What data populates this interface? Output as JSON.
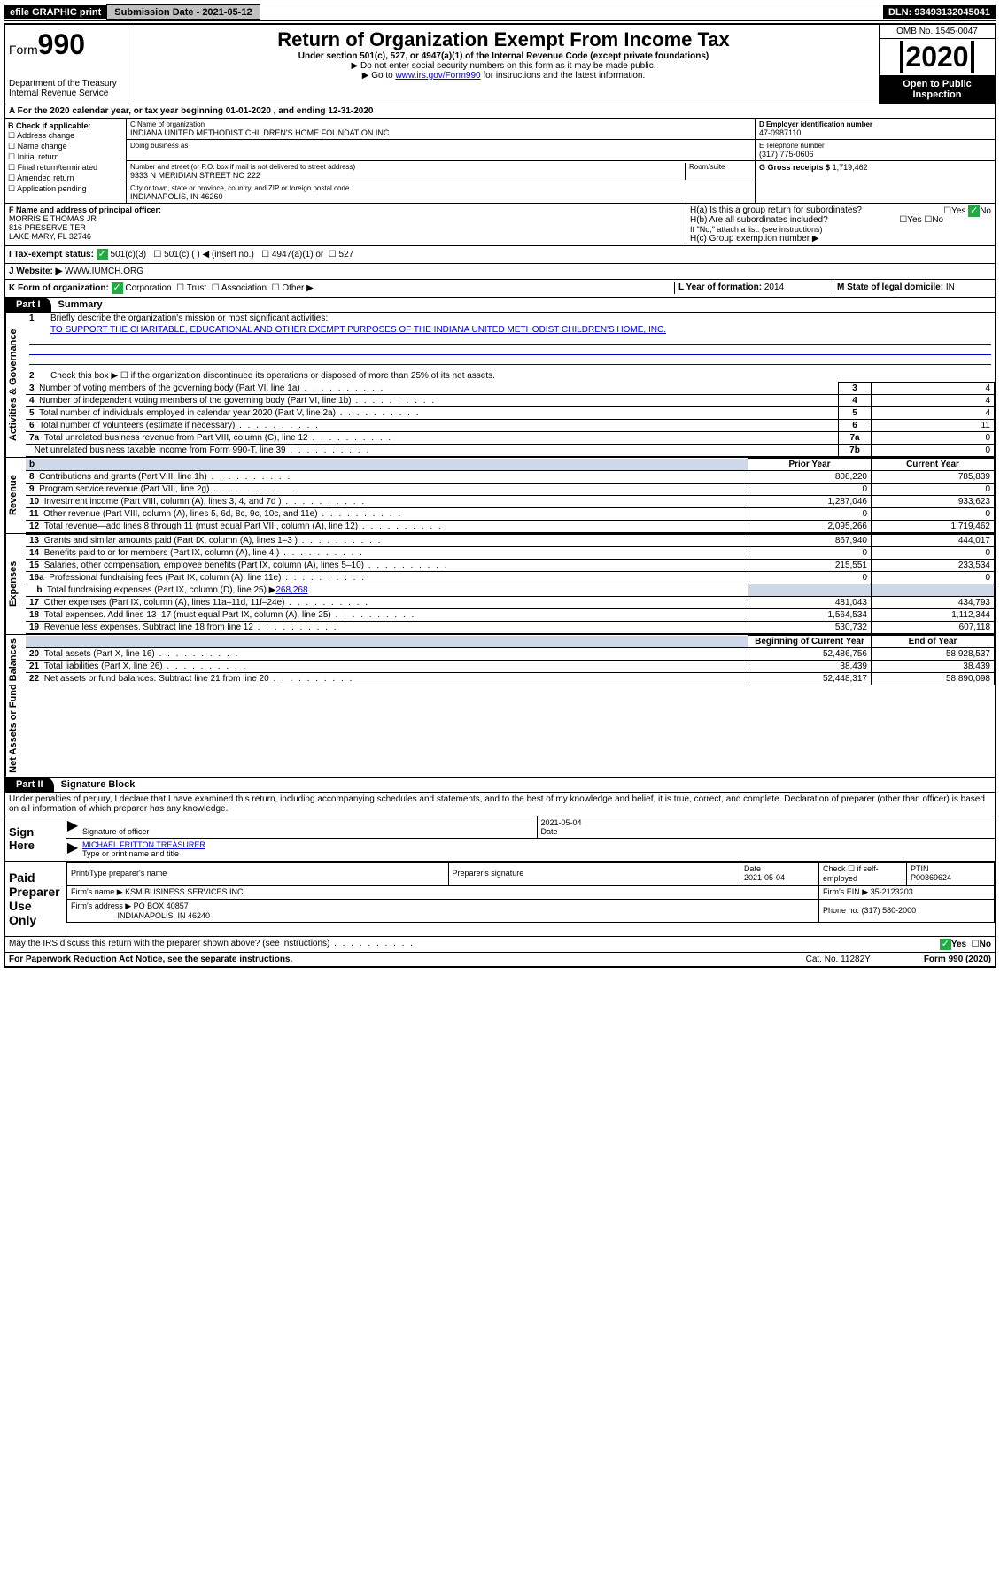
{
  "topbar": {
    "efile": "efile GRAPHIC print",
    "submission": "Submission Date - 2021-05-12",
    "dln": "DLN: 93493132045041"
  },
  "header": {
    "form_prefix": "Form",
    "form_number": "990",
    "title": "Return of Organization Exempt From Income Tax",
    "subtitle": "Under section 501(c), 527, or 4947(a)(1) of the Internal Revenue Code (except private foundations)",
    "note1": "▶ Do not enter social security numbers on this form as it may be made public.",
    "note2_pre": "▶ Go to ",
    "note2_link": "www.irs.gov/Form990",
    "note2_post": " for instructions and the latest information.",
    "dept": "Department of the Treasury\nInternal Revenue Service",
    "omb": "OMB No. 1545-0047",
    "year": "2020",
    "open": "Open to Public Inspection"
  },
  "row_a": "A For the 2020 calendar year, or tax year beginning 01-01-2020    , and ending 12-31-2020",
  "box_b": {
    "label": "B Check if applicable:",
    "opts": [
      "Address change",
      "Name change",
      "Initial return",
      "Final return/terminated",
      "Amended return",
      "Application pending"
    ]
  },
  "box_c": {
    "name_label": "C Name of organization",
    "name": "INDIANA UNITED METHODIST CHILDREN'S HOME FOUNDATION INC",
    "dba_label": "Doing business as",
    "addr_label": "Number and street (or P.O. box if mail is not delivered to street address)",
    "room_label": "Room/suite",
    "addr": "9333 N MERIDIAN STREET NO 222",
    "city_label": "City or town, state or province, country, and ZIP or foreign postal code",
    "city": "INDIANAPOLIS, IN  46260"
  },
  "box_d": {
    "label": "D Employer identification number",
    "val": "47-0987110"
  },
  "box_e": {
    "label": "E Telephone number",
    "val": "(317) 775-0606"
  },
  "box_g": {
    "label": "G Gross receipts $",
    "val": "1,719,462"
  },
  "box_f": {
    "label": "F  Name and address of principal officer:",
    "l1": "MORRIS E THOMAS JR",
    "l2": "816 PRESERVE TER",
    "l3": "LAKE MARY, FL  32746"
  },
  "box_h": {
    "a": "H(a)  Is this a group return for subordinates?",
    "b": "H(b)  Are all subordinates included?",
    "b_note": "If \"No,\" attach a list. (see instructions)",
    "c": "H(c)  Group exemption number ▶",
    "yes": "Yes",
    "no": "No"
  },
  "row_i": {
    "label": "I   Tax-exempt status:",
    "o1": "501(c)(3)",
    "o2": "501(c) (    ) ◀ (insert no.)",
    "o3": "4947(a)(1) or",
    "o4": "527"
  },
  "row_j": {
    "label": "J   Website: ▶",
    "val": "WWW.IUMCH.ORG"
  },
  "row_k": {
    "label": "K Form of organization:",
    "o1": "Corporation",
    "o2": "Trust",
    "o3": "Association",
    "o4": "Other ▶",
    "l_label": "L Year of formation:",
    "l_val": "2014",
    "m_label": "M State of legal domicile:",
    "m_val": "IN"
  },
  "part1": {
    "label": "Part I",
    "title": "Summary"
  },
  "vlabels": {
    "gov": "Activities & Governance",
    "rev": "Revenue",
    "exp": "Expenses",
    "net": "Net Assets or Fund Balances"
  },
  "gov": {
    "l1": "Briefly describe the organization's mission or most significant activities:",
    "mission": "TO SUPPORT THE CHARITABLE, EDUCATIONAL AND OTHER EXEMPT PURPOSES OF THE INDIANA UNITED METHODIST CHILDREN'S HOME, INC.",
    "l2": "Check this box ▶ ☐  if the organization discontinued its operations or disposed of more than 25% of its net assets.",
    "rows": [
      {
        "n": "3",
        "t": "Number of voting members of the governing body (Part VI, line 1a)",
        "c": "3",
        "v": "4"
      },
      {
        "n": "4",
        "t": "Number of independent voting members of the governing body (Part VI, line 1b)",
        "c": "4",
        "v": "4"
      },
      {
        "n": "5",
        "t": "Total number of individuals employed in calendar year 2020 (Part V, line 2a)",
        "c": "5",
        "v": "4"
      },
      {
        "n": "6",
        "t": "Total number of volunteers (estimate if necessary)",
        "c": "6",
        "v": "11"
      },
      {
        "n": "7a",
        "t": "Total unrelated business revenue from Part VIII, column (C), line 12",
        "c": "7a",
        "v": "0"
      },
      {
        "n": "",
        "t": "Net unrelated business taxable income from Form 990-T, line 39",
        "c": "7b",
        "v": "0"
      }
    ]
  },
  "rev": {
    "h_prior": "Prior Year",
    "h_curr": "Current Year",
    "rows": [
      {
        "n": "8",
        "t": "Contributions and grants (Part VIII, line 1h)",
        "p": "808,220",
        "c": "785,839"
      },
      {
        "n": "9",
        "t": "Program service revenue (Part VIII, line 2g)",
        "p": "0",
        "c": "0"
      },
      {
        "n": "10",
        "t": "Investment income (Part VIII, column (A), lines 3, 4, and 7d )",
        "p": "1,287,046",
        "c": "933,623"
      },
      {
        "n": "11",
        "t": "Other revenue (Part VIII, column (A), lines 5, 6d, 8c, 9c, 10c, and 11e)",
        "p": "0",
        "c": "0"
      },
      {
        "n": "12",
        "t": "Total revenue—add lines 8 through 11 (must equal Part VIII, column (A), line 12)",
        "p": "2,095,266",
        "c": "1,719,462"
      }
    ]
  },
  "exp": {
    "rows": [
      {
        "n": "13",
        "t": "Grants and similar amounts paid (Part IX, column (A), lines 1–3 )",
        "p": "867,940",
        "c": "444,017"
      },
      {
        "n": "14",
        "t": "Benefits paid to or for members (Part IX, column (A), line 4 )",
        "p": "0",
        "c": "0"
      },
      {
        "n": "15",
        "t": "Salaries, other compensation, employee benefits (Part IX, column (A), lines 5–10)",
        "p": "215,551",
        "c": "233,534"
      },
      {
        "n": "16a",
        "t": "Professional fundraising fees (Part IX, column (A), line 11e)",
        "p": "0",
        "c": "0"
      }
    ],
    "l16b_pre": "Total fundraising expenses (Part IX, column (D), line 25) ▶",
    "l16b_val": "268,268",
    "rows2": [
      {
        "n": "17",
        "t": "Other expenses (Part IX, column (A), lines 11a–11d, 11f–24e)",
        "p": "481,043",
        "c": "434,793"
      },
      {
        "n": "18",
        "t": "Total expenses. Add lines 13–17 (must equal Part IX, column (A), line 25)",
        "p": "1,564,534",
        "c": "1,112,344"
      },
      {
        "n": "19",
        "t": "Revenue less expenses. Subtract line 18 from line 12",
        "p": "530,732",
        "c": "607,118"
      }
    ]
  },
  "net": {
    "h_beg": "Beginning of Current Year",
    "h_end": "End of Year",
    "rows": [
      {
        "n": "20",
        "t": "Total assets (Part X, line 16)",
        "p": "52,486,756",
        "c": "58,928,537"
      },
      {
        "n": "21",
        "t": "Total liabilities (Part X, line 26)",
        "p": "38,439",
        "c": "38,439"
      },
      {
        "n": "22",
        "t": "Net assets or fund balances. Subtract line 21 from line 20",
        "p": "52,448,317",
        "c": "58,890,098"
      }
    ]
  },
  "part2": {
    "label": "Part II",
    "title": "Signature Block"
  },
  "perjury": "Under penalties of perjury, I declare that I have examined this return, including accompanying schedules and statements, and to the best of my knowledge and belief, it is true, correct, and complete. Declaration of preparer (other than officer) is based on all information of which preparer has any knowledge.",
  "sign": {
    "here": "Sign Here",
    "sig_label": "Signature of officer",
    "date": "2021-05-04",
    "date_label": "Date",
    "name": "MICHAEL FRITTON  TREASURER",
    "name_label": "Type or print name and title"
  },
  "paid": {
    "label": "Paid Preparer Use Only",
    "h1": "Print/Type preparer's name",
    "h2": "Preparer's signature",
    "h3": "Date",
    "h3v": "2021-05-04",
    "h4": "Check ☐ if self-employed",
    "h5": "PTIN",
    "h5v": "P00369624",
    "firm_label": "Firm's name    ▶",
    "firm": "KSM BUSINESS SERVICES INC",
    "ein_label": "Firm's EIN ▶",
    "ein": "35-2123203",
    "addr_label": "Firm's address ▶",
    "addr1": "PO BOX 40857",
    "addr2": "INDIANAPOLIS, IN  46240",
    "phone_label": "Phone no.",
    "phone": "(317) 580-2000"
  },
  "discuss": "May the IRS discuss this return with the preparer shown above? (see instructions)",
  "footer": {
    "left": "For Paperwork Reduction Act Notice, see the separate instructions.",
    "mid": "Cat. No. 11282Y",
    "right": "Form 990 (2020)"
  }
}
